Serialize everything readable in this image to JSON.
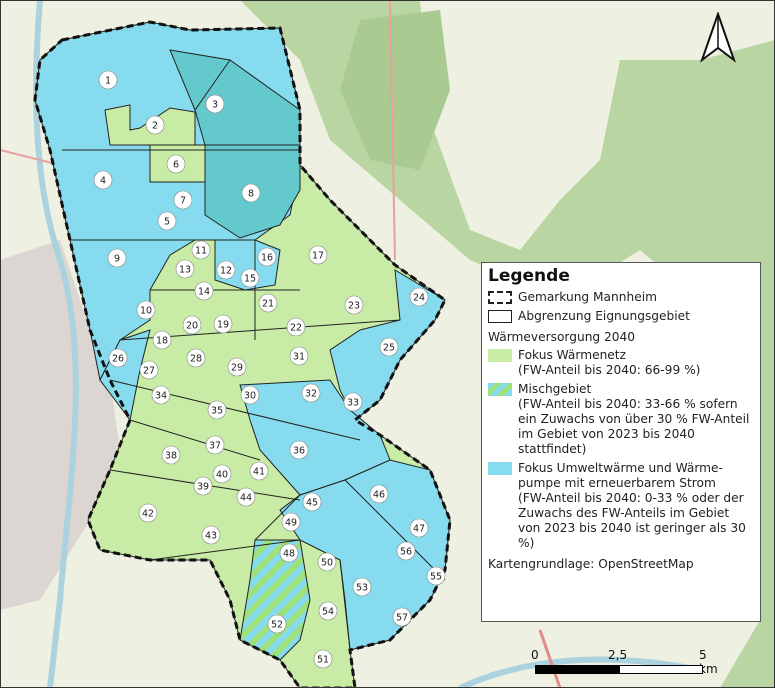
{
  "colors": {
    "waermenetz": "#c8eca6",
    "umweltwaerme": "#86dcee",
    "umweltwaerme_dark": "#63c9cc",
    "mischgebiet_a": "#86dcee",
    "mischgebiet_b": "#9ee07a",
    "boundary": "#111111",
    "background": "#eef0e2",
    "forest": "#b9d5a2"
  },
  "legend": {
    "title": "Legende",
    "boundary_label": "Gemarkung Mannheim",
    "area_label": "Abgrenzung Eignungsgebiet",
    "section_title": "Wärmeversorgung 2040",
    "items": [
      {
        "label": "Fokus Wärmenetz",
        "detail": "(FW-Anteil bis 2040: 66-99 %)"
      },
      {
        "label": "Mischgebiet",
        "detail": "(FW-Anteil bis 2040: 33-66 % sofern ein Zuwachs von über 30 % FW-Anteil im Gebiet von 2023 bis 2040 stattfindet)"
      },
      {
        "label": "Fokus Umweltwärme und Wärme-pumpe mit erneuerbarem Strom",
        "detail": "(FW-Anteil bis 2040: 0-33 % oder der Zuwachs des FW-Anteils im Gebiet von 2023 bis 2040 ist geringer als 30 %)"
      }
    ],
    "source": "Kartengrundlage: OpenStreetMap"
  },
  "scale": {
    "labels": [
      "0",
      "2,5",
      "5 km"
    ]
  },
  "north_arrow": "north-arrow-icon",
  "zones": [
    {
      "id": "1",
      "cat": "blue"
    },
    {
      "id": "2",
      "cat": "green"
    },
    {
      "id": "3",
      "cat": "blue"
    },
    {
      "id": "4",
      "cat": "blue"
    },
    {
      "id": "5",
      "cat": "blue"
    },
    {
      "id": "6",
      "cat": "green"
    },
    {
      "id": "7",
      "cat": "blue"
    },
    {
      "id": "8",
      "cat": "blue"
    },
    {
      "id": "9",
      "cat": "blue"
    },
    {
      "id": "10",
      "cat": "blue"
    },
    {
      "id": "11",
      "cat": "blue"
    },
    {
      "id": "12",
      "cat": "blue"
    },
    {
      "id": "13",
      "cat": "green"
    },
    {
      "id": "14",
      "cat": "green"
    },
    {
      "id": "15",
      "cat": "blue"
    },
    {
      "id": "16",
      "cat": "blue"
    },
    {
      "id": "17",
      "cat": "green"
    },
    {
      "id": "18",
      "cat": "green"
    },
    {
      "id": "19",
      "cat": "green"
    },
    {
      "id": "20",
      "cat": "green"
    },
    {
      "id": "21",
      "cat": "green"
    },
    {
      "id": "22",
      "cat": "green"
    },
    {
      "id": "23",
      "cat": "green"
    },
    {
      "id": "24",
      "cat": "blue"
    },
    {
      "id": "25",
      "cat": "blue"
    },
    {
      "id": "26",
      "cat": "blue"
    },
    {
      "id": "27",
      "cat": "green"
    },
    {
      "id": "28",
      "cat": "green"
    },
    {
      "id": "29",
      "cat": "green"
    },
    {
      "id": "30",
      "cat": "blue"
    },
    {
      "id": "31",
      "cat": "green"
    },
    {
      "id": "32",
      "cat": "blue"
    },
    {
      "id": "33",
      "cat": "green"
    },
    {
      "id": "34",
      "cat": "green"
    },
    {
      "id": "35",
      "cat": "green"
    },
    {
      "id": "36",
      "cat": "blue"
    },
    {
      "id": "37",
      "cat": "green"
    },
    {
      "id": "38",
      "cat": "green"
    },
    {
      "id": "39",
      "cat": "green"
    },
    {
      "id": "40",
      "cat": "green"
    },
    {
      "id": "41",
      "cat": "green"
    },
    {
      "id": "42",
      "cat": "green"
    },
    {
      "id": "43",
      "cat": "green"
    },
    {
      "id": "44",
      "cat": "green"
    },
    {
      "id": "45",
      "cat": "green"
    },
    {
      "id": "46",
      "cat": "blue"
    },
    {
      "id": "47",
      "cat": "blue"
    },
    {
      "id": "48",
      "cat": "mixed"
    },
    {
      "id": "49",
      "cat": "blue"
    },
    {
      "id": "50",
      "cat": "blue"
    },
    {
      "id": "51",
      "cat": "green"
    },
    {
      "id": "52",
      "cat": "mixed"
    },
    {
      "id": "53",
      "cat": "blue"
    },
    {
      "id": "54",
      "cat": "green"
    },
    {
      "id": "55",
      "cat": "blue"
    },
    {
      "id": "56",
      "cat": "blue"
    },
    {
      "id": "57",
      "cat": "blue"
    }
  ]
}
